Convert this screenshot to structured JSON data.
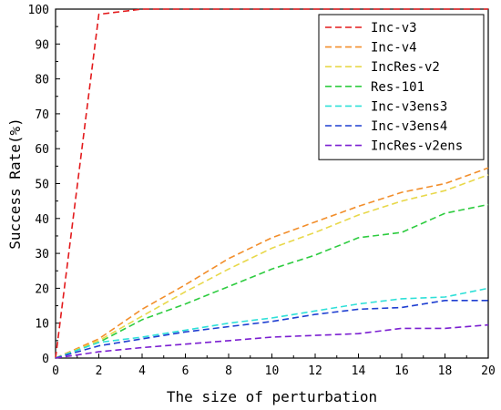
{
  "chart_data": {
    "type": "line",
    "xlabel": "The size of perturbation",
    "ylabel": "Success Rate(%)",
    "xlim": [
      0,
      20
    ],
    "ylim": [
      0,
      100
    ],
    "xticks": [
      0,
      2,
      4,
      6,
      8,
      10,
      12,
      14,
      16,
      18,
      20
    ],
    "yticks": [
      0,
      10,
      20,
      30,
      40,
      50,
      60,
      70,
      80,
      90,
      100
    ],
    "x": [
      0,
      2,
      4,
      6,
      8,
      10,
      12,
      14,
      16,
      18,
      20
    ],
    "grid": false,
    "legend_position": "top-right",
    "series": [
      {
        "name": "Inc-v3",
        "color": "#e31a1c",
        "values": [
          0,
          98.5,
          100,
          100,
          100,
          100,
          100,
          100,
          100,
          100,
          100
        ]
      },
      {
        "name": "Inc-v4",
        "color": "#f28e2b",
        "values": [
          0,
          5.5,
          14,
          21,
          28.5,
          34.5,
          39,
          43.5,
          47.5,
          50,
          54.5
        ]
      },
      {
        "name": "IncRes-v2",
        "color": "#e8d84a",
        "values": [
          0,
          5,
          12,
          19,
          25.5,
          31.5,
          36,
          41,
          45,
          48,
          52.5
        ]
      },
      {
        "name": "Res-101",
        "color": "#2ecc40",
        "values": [
          0,
          4.5,
          11,
          15.5,
          20.5,
          25.5,
          29.5,
          34.5,
          36,
          41.5,
          44
        ]
      },
      {
        "name": "Inc-v3ens3",
        "color": "#2fe0d8",
        "values": [
          0,
          4.5,
          6,
          8,
          10,
          11.5,
          13.5,
          15.5,
          17,
          17.5,
          20
        ]
      },
      {
        "name": "Inc-v3ens4",
        "color": "#1f3fd1",
        "values": [
          0,
          3.5,
          5.5,
          7.5,
          9,
          10.5,
          12.5,
          14,
          14.5,
          16.5,
          16.5
        ]
      },
      {
        "name": "IncRes-v2ens",
        "color": "#7b1fd1",
        "values": [
          0,
          1.8,
          3,
          4,
          5,
          6,
          6.5,
          7,
          8.5,
          8.5,
          9.5
        ]
      }
    ]
  }
}
